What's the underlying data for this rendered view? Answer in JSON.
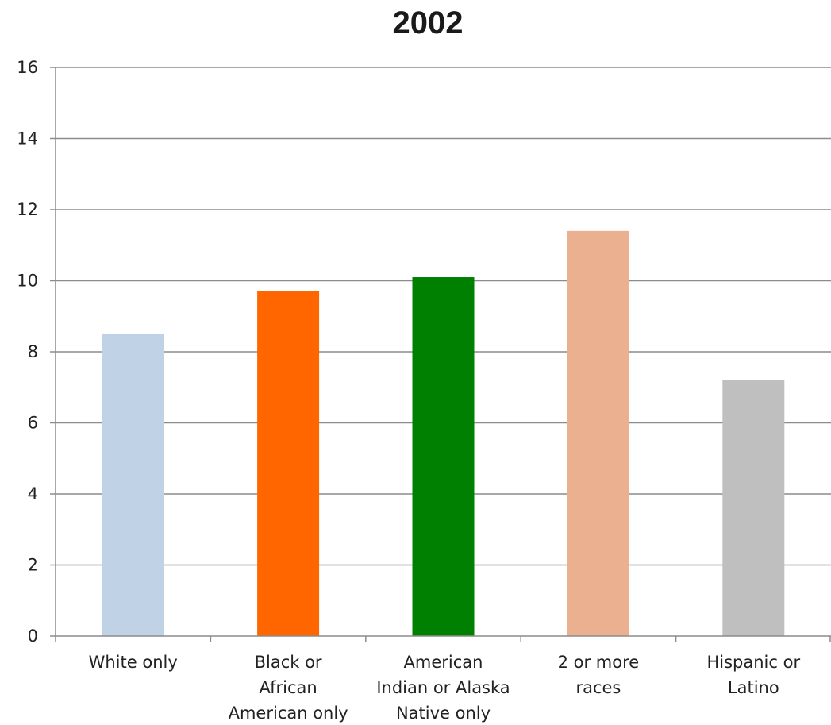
{
  "chart_data": {
    "type": "bar",
    "title": "2002",
    "xlabel": "",
    "ylabel": "",
    "ylim": [
      0,
      16
    ],
    "yticks": [
      0,
      2,
      4,
      6,
      8,
      10,
      12,
      14,
      16
    ],
    "grid": true,
    "legend": "none",
    "categories": [
      [
        "White only"
      ],
      [
        "Black or",
        "African",
        "American only"
      ],
      [
        "American",
        "Indian or Alaska",
        "Native only"
      ],
      [
        "2 or more",
        "races"
      ],
      [
        "Hispanic or",
        "Latino"
      ]
    ],
    "values": [
      8.5,
      9.7,
      10.1,
      11.4,
      7.2
    ],
    "colors": [
      "#c0d3e6",
      "#ff6600",
      "#008000",
      "#ebb090",
      "#bfbfbf"
    ]
  }
}
